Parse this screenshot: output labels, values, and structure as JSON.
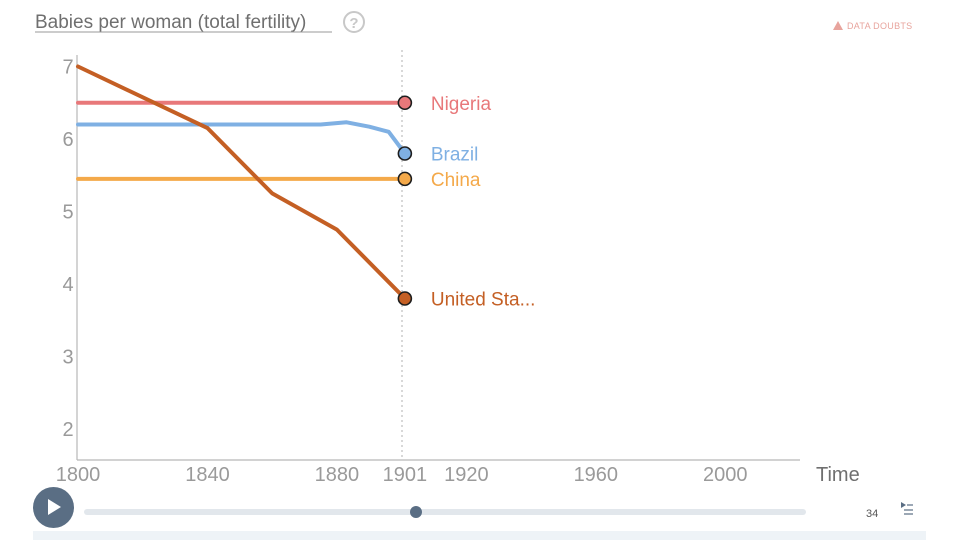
{
  "header": {
    "title": "Babies per woman (total fertility)",
    "help_icon": "question-circle-icon",
    "warning": "DATA DOUBTS",
    "warning_icon": "warning-triangle-icon"
  },
  "chart_data": {
    "type": "line",
    "title": "Babies per woman (total fertility)",
    "xlabel": "Time",
    "ylabel": "",
    "xlim": [
      1800,
      2020
    ],
    "ylim": [
      1.6,
      7.2
    ],
    "x_ticks": [
      "1800",
      "1840",
      "1880",
      "1901",
      "1920",
      "1960",
      "2000"
    ],
    "y_ticks": [
      "7",
      "6",
      "5",
      "4",
      "3",
      "2"
    ],
    "current_year": 1901,
    "grid": false,
    "series": [
      {
        "name": "Nigeria",
        "color": "#e8787a",
        "x": [
          1800,
          1901
        ],
        "values": [
          6.5,
          6.5
        ]
      },
      {
        "name": "Brazil",
        "color": "#7fb0e3",
        "x": [
          1800,
          1875,
          1883,
          1890,
          1896,
          1901
        ],
        "values": [
          6.2,
          6.2,
          6.23,
          6.17,
          6.1,
          5.8
        ]
      },
      {
        "name": "China",
        "color": "#f4a94a",
        "x": [
          1800,
          1901
        ],
        "values": [
          5.45,
          5.45
        ]
      },
      {
        "name": "United States",
        "display_label": "United Sta...",
        "color": "#c45f24",
        "x": [
          1800,
          1840,
          1860,
          1880,
          1901
        ],
        "values": [
          7.0,
          6.15,
          5.25,
          4.75,
          3.8
        ]
      }
    ]
  },
  "controls": {
    "play_icon": "play-icon",
    "slider_value": 1901,
    "slider_fraction": 0.46
  },
  "footer": {
    "page_number": "34",
    "menu_icon": "menu-icon"
  }
}
